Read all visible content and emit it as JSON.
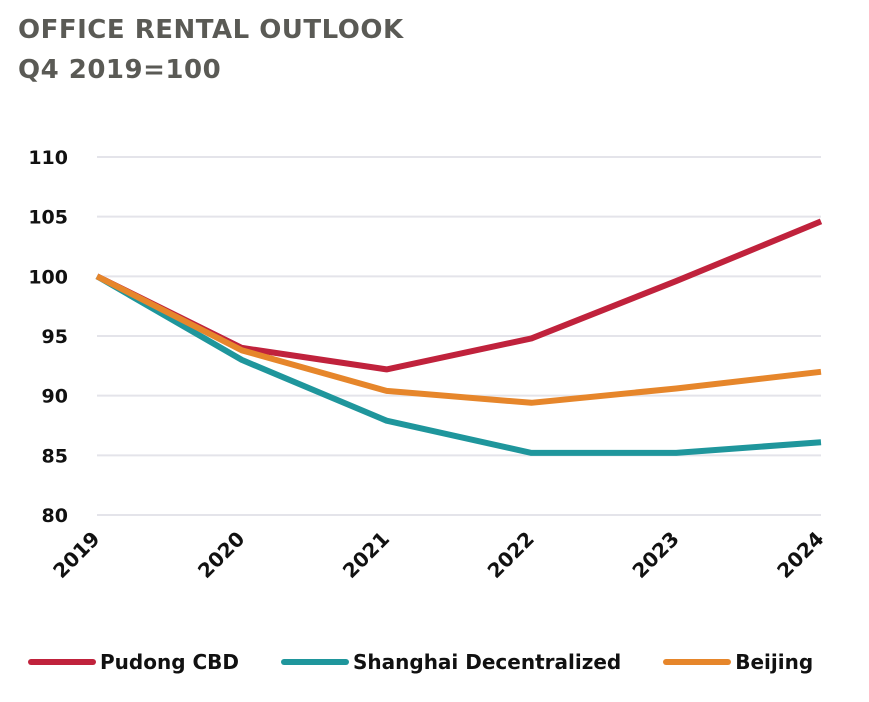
{
  "header": {
    "title_line1": "OFFICE RENTAL OUTLOOK",
    "title_line2": "Q4 2019=100"
  },
  "chart_data": {
    "type": "line",
    "title": "OFFICE RENTAL OUTLOOK",
    "subtitle": "Q4 2019=100",
    "x": [
      "2019",
      "2020",
      "2021",
      "2022",
      "2023",
      "2024"
    ],
    "ylim": [
      80,
      110
    ],
    "yticks": [
      80,
      85,
      90,
      95,
      100,
      105,
      110
    ],
    "grid": true,
    "legend_position": "bottom",
    "series": [
      {
        "name": "Pudong CBD",
        "color": "#c0223c",
        "values": [
          100,
          94.0,
          92.2,
          94.8,
          99.6,
          104.6
        ]
      },
      {
        "name": "Shanghai Decentralized",
        "color": "#1f969c",
        "values": [
          100,
          93.0,
          87.9,
          85.2,
          85.2,
          86.1
        ]
      },
      {
        "name": "Beijing",
        "color": "#e6862b",
        "values": [
          100,
          93.8,
          90.4,
          89.4,
          90.6,
          92.0
        ]
      }
    ]
  }
}
